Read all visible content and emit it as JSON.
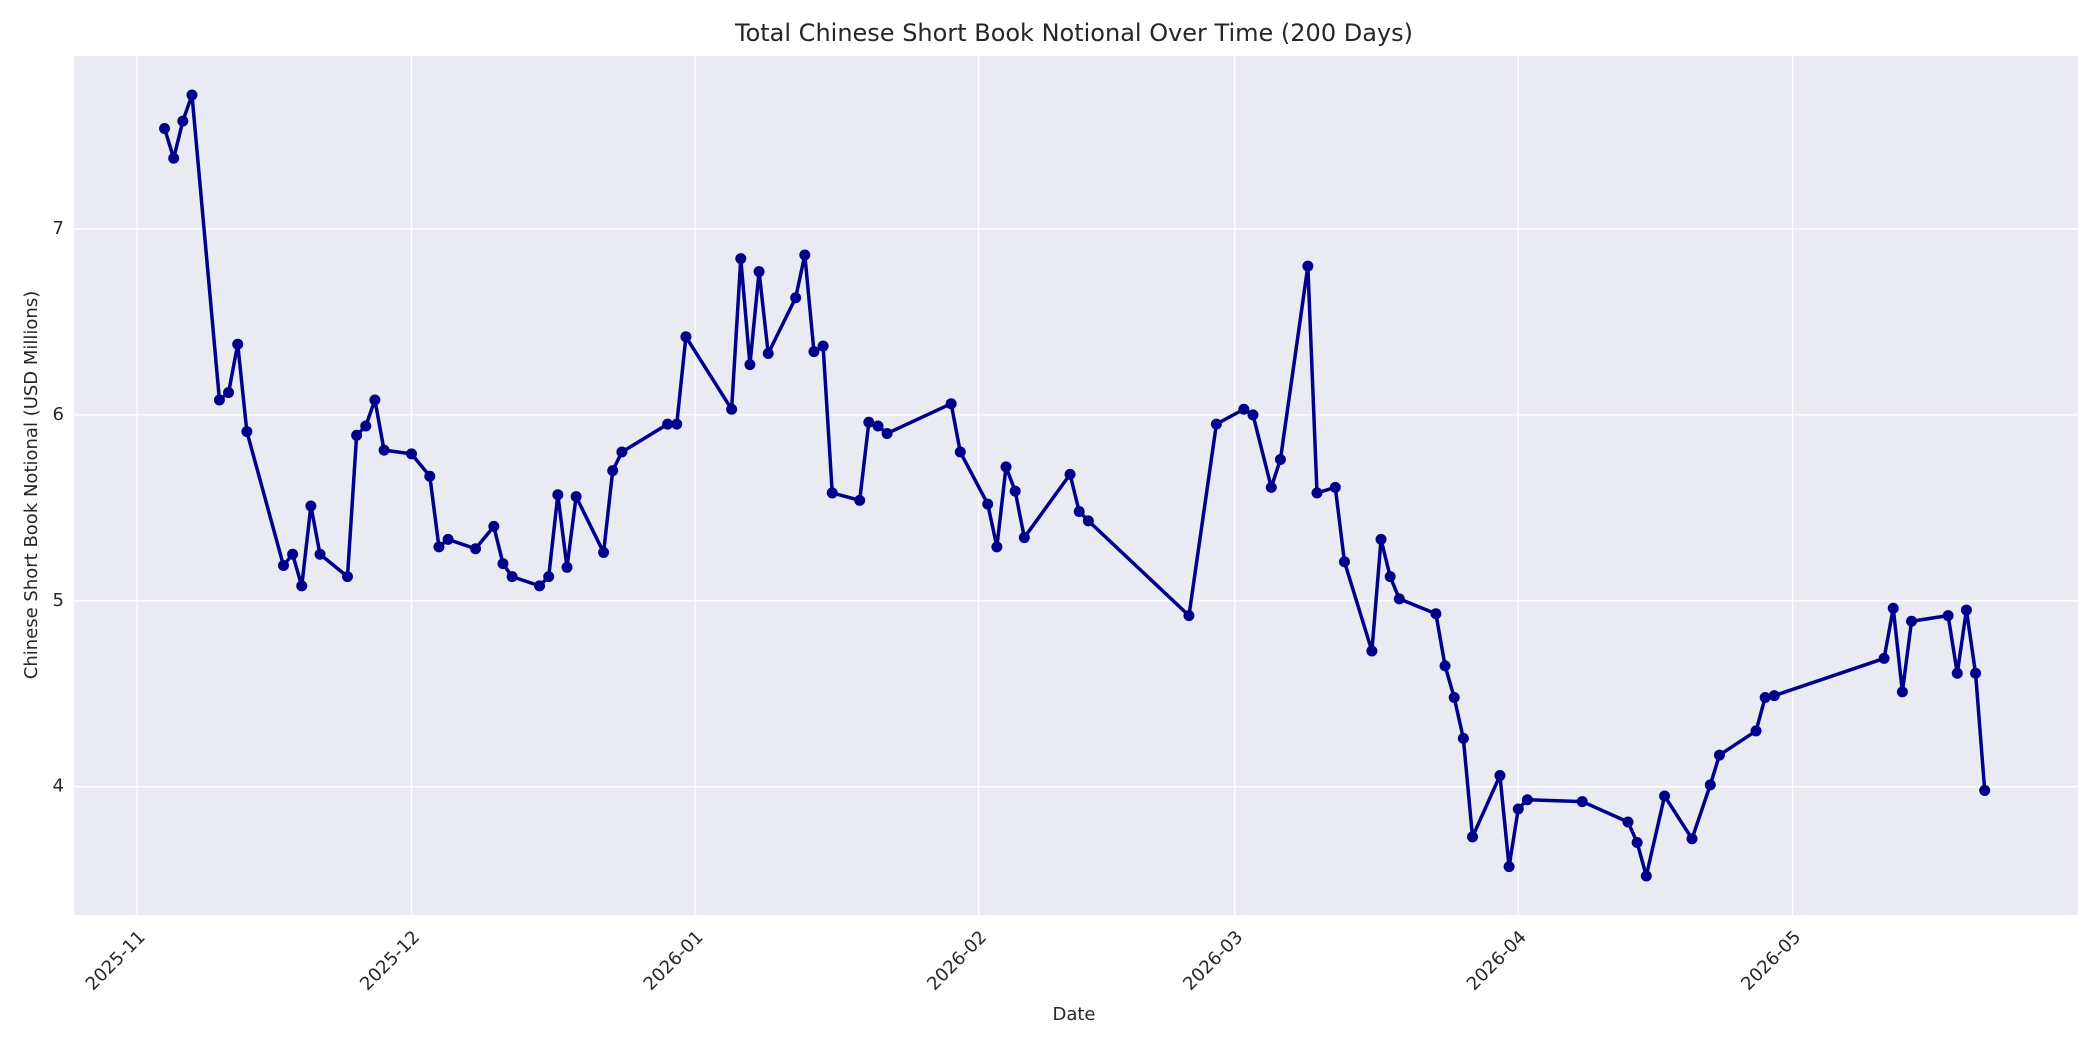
{
  "chart_data": {
    "type": "line",
    "title": "Total Chinese Short Book Notional Over Time (200 Days)",
    "x_label": "Date",
    "y_label": "Chinese Short Book Notional (USD Millions)",
    "color": "#00008b",
    "grid": true,
    "x": [
      3,
      4,
      5,
      6,
      9,
      10,
      11,
      12,
      16,
      17,
      18,
      19,
      20,
      23,
      24,
      25,
      26,
      27,
      30,
      32,
      33,
      34,
      37,
      39,
      40,
      41,
      44,
      45,
      46,
      47,
      48,
      51,
      52,
      53,
      58,
      59,
      60,
      65,
      66,
      67,
      68,
      69,
      72,
      73,
      74,
      75,
      76,
      79,
      80,
      81,
      82,
      89,
      90,
      93,
      94,
      95,
      96,
      97,
      102,
      103,
      104,
      115,
      118,
      121,
      122,
      124,
      125,
      128,
      129,
      131,
      132,
      135,
      136,
      137,
      138,
      142,
      143,
      144,
      145,
      146,
      149,
      150,
      151,
      152,
      158,
      163,
      164,
      165,
      167,
      170,
      172,
      173,
      177,
      178,
      179,
      191,
      192,
      193,
      194,
      198,
      199,
      200,
      201,
      202
    ],
    "values": [
      7.54,
      7.38,
      7.58,
      7.72,
      6.08,
      6.12,
      6.38,
      5.91,
      5.19,
      5.25,
      5.08,
      5.51,
      5.25,
      5.13,
      5.89,
      5.94,
      6.08,
      5.81,
      5.79,
      5.67,
      5.29,
      5.33,
      5.28,
      5.4,
      5.2,
      5.13,
      5.08,
      5.13,
      5.57,
      5.18,
      5.56,
      5.26,
      5.7,
      5.8,
      5.95,
      5.95,
      6.42,
      6.03,
      6.84,
      6.27,
      6.77,
      6.33,
      6.63,
      6.86,
      6.34,
      6.37,
      5.58,
      5.54,
      5.96,
      5.94,
      5.9,
      6.06,
      5.8,
      5.52,
      5.29,
      5.72,
      5.59,
      5.34,
      5.68,
      5.48,
      5.43,
      4.92,
      5.95,
      6.03,
      6.0,
      5.61,
      5.76,
      6.8,
      5.58,
      5.61,
      5.21,
      4.73,
      5.33,
      5.13,
      5.01,
      4.93,
      4.65,
      4.48,
      4.26,
      3.73,
      4.06,
      3.57,
      3.88,
      3.93,
      3.92,
      3.81,
      3.7,
      3.52,
      3.95,
      3.72,
      4.01,
      4.17,
      4.3,
      4.48,
      4.49,
      4.69,
      4.96,
      4.51,
      4.89,
      4.92,
      4.61,
      4.95,
      4.61,
      3.98
    ],
    "xlim": [
      -6.9,
      212.2
    ],
    "xticks": [
      {
        "value": 0,
        "label": "2025-11"
      },
      {
        "value": 30,
        "label": "2025-12"
      },
      {
        "value": 61,
        "label": "2026-01"
      },
      {
        "value": 92,
        "label": "2026-02"
      },
      {
        "value": 120,
        "label": "2026-03"
      },
      {
        "value": 151,
        "label": "2026-04"
      },
      {
        "value": 181,
        "label": "2026-05"
      }
    ],
    "ylim": [
      3.31,
      7.93
    ],
    "yticks": [
      4,
      5,
      6,
      7
    ]
  }
}
